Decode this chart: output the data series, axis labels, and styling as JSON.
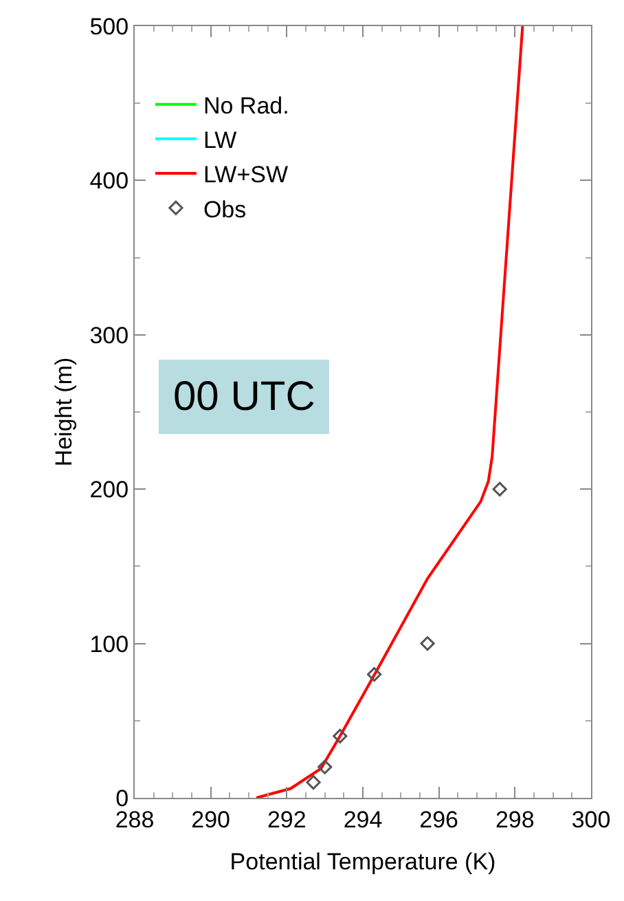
{
  "chart_data": {
    "type": "line",
    "xlabel": "Potential Temperature (K)",
    "ylabel": "Height (m)",
    "xlim": [
      288,
      300
    ],
    "xticks": [
      288,
      290,
      292,
      294,
      296,
      298,
      300
    ],
    "ylim": [
      0,
      500
    ],
    "yticks": [
      0,
      100,
      200,
      300,
      400,
      500
    ],
    "legend": "top left",
    "annotations": [
      "00 UTC"
    ],
    "series": [
      {
        "name": "No Rad.",
        "color": "#00ff00",
        "values": [
          null,
          null,
          null,
          null,
          null,
          null,
          null,
          null,
          null,
          null
        ]
      },
      {
        "name": "LW",
        "color": "#00ffff",
        "values": [
          null,
          null,
          null,
          null,
          null,
          null,
          null,
          null,
          null,
          null
        ]
      },
      {
        "name": "LW+SW",
        "color": "#ff0000",
        "x": [
          291.2,
          292.1,
          292.9,
          293.4,
          294.4,
          295.7,
          297.1,
          297.3,
          297.4,
          298.2
        ],
        "values": [
          0,
          6,
          19,
          40,
          84,
          142,
          192,
          205,
          221,
          500
        ]
      },
      {
        "name": "Obs",
        "type": "scatter",
        "marker": "diamond",
        "color": "#555555",
        "x": [
          292.7,
          293.0,
          293.4,
          294.3,
          295.7,
          297.6
        ],
        "values": [
          10,
          20,
          40,
          80,
          100,
          200
        ]
      }
    ]
  }
}
